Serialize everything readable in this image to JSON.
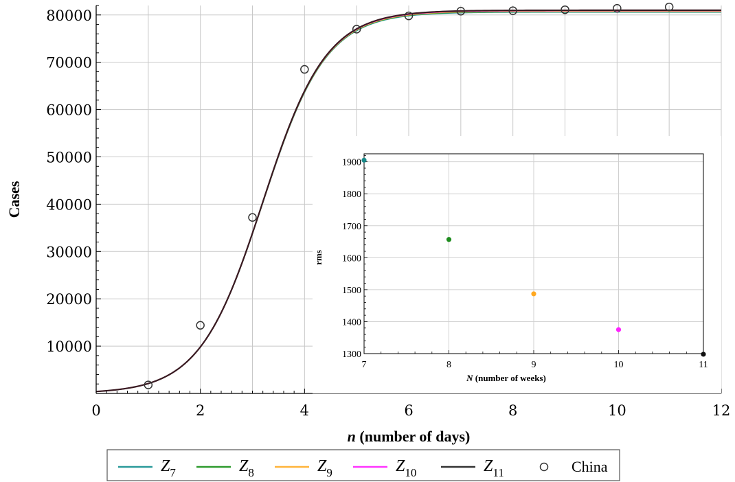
{
  "chart_data": [
    {
      "type": "line",
      "xlabel_var": "n",
      "xlabel_rest": " (number of days)",
      "ylabel": "Cases",
      "xlim": [
        0,
        12
      ],
      "ylim": [
        0,
        82000
      ],
      "x_ticks": [
        0,
        2,
        4,
        6,
        8,
        10,
        12
      ],
      "y_ticks": [
        10000,
        20000,
        30000,
        40000,
        50000,
        60000,
        70000,
        80000
      ],
      "grid": true,
      "legend_position": "bottom",
      "series": [
        {
          "name": "Z7",
          "base": "Z",
          "sub": "7",
          "color": "#2a9a9a",
          "type": "line",
          "logistic": {
            "L": 80600,
            "k": 1.65,
            "x0": 3.2
          }
        },
        {
          "name": "Z8",
          "base": "Z",
          "sub": "8",
          "color": "#2e9b2e",
          "type": "line",
          "logistic": {
            "L": 80700,
            "k": 1.65,
            "x0": 3.2
          }
        },
        {
          "name": "Z9",
          "base": "Z",
          "sub": "9",
          "color": "#ffb43a",
          "type": "line",
          "logistic": {
            "L": 80800,
            "k": 1.65,
            "x0": 3.2
          }
        },
        {
          "name": "Z10",
          "base": "Z",
          "sub": "10",
          "color": "#ff33ff",
          "type": "line",
          "logistic": {
            "L": 80900,
            "k": 1.65,
            "x0": 3.2
          }
        },
        {
          "name": "Z11",
          "base": "Z",
          "sub": "11",
          "color": "#333333",
          "type": "line",
          "logistic": {
            "L": 81000,
            "k": 1.65,
            "x0": 3.2
          }
        },
        {
          "name": "China",
          "color": "#333333",
          "type": "scatter",
          "x": [
            1,
            2,
            3,
            4,
            5,
            6,
            7,
            8,
            9,
            10,
            11
          ],
          "y": [
            1800,
            14400,
            37200,
            68500,
            77000,
            79800,
            80800,
            80900,
            81100,
            81400,
            81700
          ]
        }
      ]
    },
    {
      "type": "scatter",
      "xlabel_var": "N",
      "xlabel_rest": " (number of weeks)",
      "ylabel": "rms",
      "xlim": [
        7,
        11
      ],
      "ylim": [
        1300,
        1925
      ],
      "x_ticks": [
        7,
        8,
        9,
        10,
        11
      ],
      "y_ticks": [
        1300,
        1400,
        1500,
        1600,
        1700,
        1800,
        1900
      ],
      "grid": true,
      "points": [
        {
          "x": 7,
          "y": 1905,
          "color": "#1a8a8a"
        },
        {
          "x": 8,
          "y": 1657,
          "color": "#1e8c1e"
        },
        {
          "x": 9,
          "y": 1487,
          "color": "#ffa820"
        },
        {
          "x": 10,
          "y": 1375,
          "color": "#ff22ff"
        },
        {
          "x": 11,
          "y": 1298,
          "color": "#111111"
        }
      ]
    }
  ],
  "legend": {
    "items": [
      {
        "sym": "Z",
        "sub": "7",
        "color": "#2a9a9a",
        "kind": "line"
      },
      {
        "sym": "Z",
        "sub": "8",
        "color": "#2e9b2e",
        "kind": "line"
      },
      {
        "sym": "Z",
        "sub": "9",
        "color": "#ffb43a",
        "kind": "line"
      },
      {
        "sym": "Z",
        "sub": "10",
        "color": "#ff33ff",
        "kind": "line"
      },
      {
        "sym": "Z",
        "sub": "11",
        "color": "#333333",
        "kind": "line"
      },
      {
        "text": "China",
        "color": "#333333",
        "kind": "marker"
      }
    ]
  }
}
